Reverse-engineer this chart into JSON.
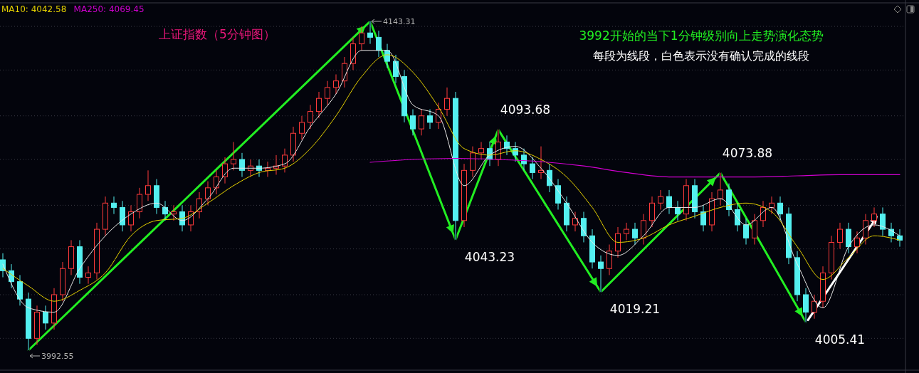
{
  "chart_data": {
    "type": "candlestick",
    "title": "上证指数（5分钟图）",
    "subtitle": "3992开始的当下1分钟级别向上走势演化态势",
    "annotations": [
      "每段为线段，白色表示没有确认完成的线段"
    ],
    "categories": [
      null,
      null,
      null,
      null,
      null,
      null,
      null,
      null,
      null,
      null,
      null,
      null,
      null,
      null,
      null,
      null,
      null,
      null,
      null,
      null,
      null,
      null,
      null,
      null,
      null,
      null,
      null,
      null,
      null,
      null,
      null,
      null,
      null,
      null,
      null,
      null,
      null,
      null,
      null,
      null,
      null,
      null,
      null,
      null,
      null,
      null,
      null,
      null,
      null,
      null,
      null,
      null,
      null,
      null,
      null,
      null,
      null,
      null,
      null,
      null,
      null,
      null,
      null,
      null,
      null,
      null,
      null,
      null,
      null,
      null,
      null,
      null,
      null,
      null,
      null,
      null,
      null,
      null,
      null,
      null,
      null,
      null,
      null,
      null,
      null,
      null,
      null,
      null,
      null,
      null,
      null,
      null,
      null,
      null,
      null,
      null,
      null,
      null,
      null,
      null,
      null,
      null,
      null,
      null,
      null,
      null
    ],
    "grid": "y",
    "yticks": [
      {
        "value": 4141,
        "label": null
      },
      {
        "value": 4121,
        "label": null
      },
      {
        "value": 4100,
        "label": null
      },
      {
        "value": 4080,
        "label": null
      },
      {
        "value": 4059,
        "label": null
      },
      {
        "value": 4039,
        "label": null
      },
      {
        "value": 4018,
        "label": null
      },
      {
        "value": 3998,
        "label": null
      }
    ],
    "ohlc": [
      [
        4034,
        4037,
        4026,
        4029
      ],
      [
        4029,
        4032,
        4021,
        4024
      ],
      [
        4024,
        4027,
        4013,
        4016
      ],
      [
        4016,
        4019,
        3992.55,
        3998
      ],
      [
        3998,
        4013,
        3995,
        4010
      ],
      [
        4010,
        4013,
        4002,
        4005
      ],
      [
        4005,
        4021,
        4002,
        4018
      ],
      [
        4018,
        4033,
        4015,
        4030
      ],
      [
        4030,
        4043,
        4027,
        4040
      ],
      [
        4040,
        4043,
        4023,
        4026
      ],
      [
        4026,
        4031,
        4023,
        4028
      ],
      [
        4028,
        4051,
        4025,
        4048
      ],
      [
        4048,
        4063,
        4045,
        4060
      ],
      [
        4060,
        4063,
        4055,
        4058
      ],
      [
        4058,
        4061,
        4047,
        4050
      ],
      [
        4050,
        4059,
        4047,
        4056
      ],
      [
        4056,
        4067,
        4053,
        4064
      ],
      [
        4064,
        4075,
        4061,
        4068
      ],
      [
        4068,
        4071,
        4055,
        4058
      ],
      [
        4058,
        4061,
        4052,
        4055
      ],
      [
        4055,
        4059,
        4052,
        4056
      ],
      [
        4056,
        4059,
        4047,
        4050
      ],
      [
        4050,
        4059,
        4047,
        4056
      ],
      [
        4056,
        4065,
        4053,
        4062
      ],
      [
        4062,
        4070,
        4059,
        4067
      ],
      [
        4067,
        4075,
        4064,
        4072
      ],
      [
        4072,
        4081,
        4069,
        4078
      ],
      [
        4078,
        4088,
        4075,
        4080
      ],
      [
        4080,
        4083,
        4072,
        4075
      ],
      [
        4075,
        4080,
        4072,
        4077
      ],
      [
        4077,
        4080,
        4072,
        4075
      ],
      [
        4075,
        4079,
        4072,
        4076
      ],
      [
        4076,
        4082,
        4073,
        4077
      ],
      [
        4077,
        4085,
        4074,
        4082
      ],
      [
        4082,
        4095,
        4079,
        4092
      ],
      [
        4092,
        4100,
        4089,
        4097
      ],
      [
        4097,
        4105,
        4094,
        4102
      ],
      [
        4102,
        4111,
        4099,
        4108
      ],
      [
        4108,
        4116,
        4105,
        4113
      ],
      [
        4113,
        4119,
        4110,
        4116
      ],
      [
        4116,
        4127,
        4113,
        4124
      ],
      [
        4124,
        4136,
        4121,
        4133
      ],
      [
        4133,
        4141,
        4130,
        4138
      ],
      [
        4138,
        4143.31,
        4133,
        4136
      ],
      [
        4136,
        4139,
        4127,
        4130
      ],
      [
        4130,
        4133,
        4122,
        4125
      ],
      [
        4125,
        4128,
        4115,
        4118
      ],
      [
        4118,
        4121,
        4097,
        4100
      ],
      [
        4100,
        4103,
        4091,
        4094
      ],
      [
        4094,
        4103,
        4091,
        4100
      ],
      [
        4100,
        4103,
        4094,
        4097
      ],
      [
        4097,
        4106,
        4094,
        4103
      ],
      [
        4103,
        4113,
        4100,
        4108
      ],
      [
        4108,
        4111,
        4043.23,
        4052
      ],
      [
        4052,
        4078,
        4049,
        4075
      ],
      [
        4075,
        4086,
        4072,
        4083
      ],
      [
        4083,
        4088,
        4080,
        4085
      ],
      [
        4085,
        4088,
        4077,
        4080
      ],
      [
        4080,
        4093.68,
        4077,
        4088
      ],
      [
        4088,
        4091,
        4082,
        4085
      ],
      [
        4085,
        4088,
        4079,
        4082
      ],
      [
        4082,
        4085,
        4075,
        4078
      ],
      [
        4078,
        4081,
        4071,
        4074
      ],
      [
        4074,
        4086,
        4071,
        4075
      ],
      [
        4075,
        4078,
        4065,
        4068
      ],
      [
        4068,
        4071,
        4057,
        4060
      ],
      [
        4060,
        4063,
        4047,
        4050
      ],
      [
        4050,
        4056,
        4047,
        4053
      ],
      [
        4053,
        4056,
        4042,
        4045
      ],
      [
        4045,
        4048,
        4030,
        4033
      ],
      [
        4033,
        4036,
        4019.21,
        4030
      ],
      [
        4030,
        4041,
        4027,
        4038
      ],
      [
        4038,
        4049,
        4035,
        4046
      ],
      [
        4046,
        4051,
        4043,
        4048
      ],
      [
        4048,
        4051,
        4041,
        4044
      ],
      [
        4044,
        4055,
        4041,
        4052
      ],
      [
        4052,
        4063,
        4049,
        4060
      ],
      [
        4060,
        4066,
        4057,
        4063
      ],
      [
        4063,
        4066,
        4055,
        4058
      ],
      [
        4058,
        4061,
        4052,
        4055
      ],
      [
        4055,
        4071,
        4052,
        4068
      ],
      [
        4068,
        4071,
        4053,
        4056
      ],
      [
        4056,
        4059,
        4047,
        4050
      ],
      [
        4050,
        4065,
        4047,
        4062
      ],
      [
        4062,
        4073.88,
        4059,
        4066
      ],
      [
        4066,
        4069,
        4054,
        4057
      ],
      [
        4057,
        4060,
        4047,
        4050
      ],
      [
        4050,
        4053,
        4041,
        4044
      ],
      [
        4044,
        4055,
        4041,
        4052
      ],
      [
        4052,
        4061,
        4049,
        4058
      ],
      [
        4058,
        4063,
        4055,
        4060
      ],
      [
        4060,
        4063,
        4052,
        4055
      ],
      [
        4055,
        4058,
        4032,
        4035
      ],
      [
        4035,
        4038,
        4015,
        4018
      ],
      [
        4018,
        4021,
        4005.41,
        4010
      ],
      [
        4010,
        4018,
        4007,
        4015
      ],
      [
        4015,
        4031,
        4012,
        4028
      ],
      [
        4028,
        4045,
        4025,
        4042
      ],
      [
        4042,
        4051,
        4039,
        4048
      ],
      [
        4048,
        4051,
        4037,
        4040
      ],
      [
        4040,
        4047,
        4037,
        4044
      ],
      [
        4044,
        4055,
        4041,
        4052
      ],
      [
        4052,
        4058,
        4049,
        4055
      ],
      [
        4055,
        4058,
        4045,
        4048
      ],
      [
        4048,
        4051,
        4042,
        4045
      ],
      [
        4045,
        4048,
        4040,
        4043
      ]
    ],
    "series": [
      {
        "type": "line",
        "color": "#e8e8e8",
        "values": [
          4032,
          null,
          null,
          4012,
          null,
          null,
          4010,
          null,
          null,
          4030,
          null,
          null,
          4045,
          null,
          null,
          4055,
          null,
          null,
          4060,
          null,
          null,
          4052,
          null,
          null,
          4062,
          null,
          null,
          4076,
          null,
          null,
          4076,
          null,
          null,
          4078,
          null,
          null,
          4095,
          null,
          null,
          4110,
          null,
          null,
          4130,
          null,
          null,
          4130,
          null,
          null,
          4105,
          null,
          null,
          4100,
          null,
          null,
          4068,
          null,
          null,
          4082,
          null,
          null,
          4086,
          null,
          null,
          4076,
          null,
          null,
          4060,
          null,
          null,
          4042,
          null,
          null,
          4036,
          null,
          null,
          4045,
          null,
          null,
          4058,
          null,
          null,
          4058,
          null,
          null,
          4062,
          null,
          null,
          4050,
          null,
          null,
          4058,
          null,
          null,
          4032,
          null,
          null,
          4012,
          null,
          null,
          4040,
          null,
          null,
          4050,
          null,
          null,
          4045
        ]
      },
      {
        "type": "line",
        "name": "MA10: 4042.58",
        "color": "#e6d200",
        "values": [
          4030,
          null,
          null,
          4022,
          null,
          null,
          4015,
          null,
          null,
          4020,
          null,
          null,
          4028,
          null,
          null,
          4045,
          null,
          null,
          4052,
          null,
          null,
          4053,
          null,
          null,
          4060,
          null,
          null,
          4068,
          null,
          null,
          4074,
          null,
          null,
          4076,
          null,
          null,
          4085,
          null,
          null,
          4100,
          null,
          null,
          4118,
          null,
          null,
          4128,
          null,
          null,
          4120,
          null,
          null,
          4104,
          null,
          null,
          4085,
          null,
          null,
          4082,
          null,
          null,
          4084,
          null,
          null,
          4080,
          null,
          null,
          4072,
          null,
          null,
          4058,
          null,
          null,
          4042,
          null,
          null,
          4044,
          null,
          null,
          4050,
          null,
          null,
          4054,
          null,
          null,
          4058,
          null,
          null,
          4060,
          null,
          null,
          4056,
          null,
          null,
          4040,
          null,
          null,
          4025,
          null,
          null,
          4035,
          null,
          null,
          4045,
          null,
          null,
          4043
        ]
      },
      {
        "type": "line",
        "name": "MA250: 4069.45",
        "color": "#d000d0",
        "values": [
          null,
          null,
          null,
          null,
          null,
          null,
          null,
          null,
          null,
          null,
          null,
          null,
          null,
          null,
          null,
          null,
          null,
          null,
          null,
          null,
          null,
          null,
          null,
          null,
          null,
          null,
          null,
          null,
          null,
          null,
          null,
          null,
          null,
          null,
          null,
          null,
          null,
          null,
          null,
          null,
          null,
          null,
          null,
          4078.7,
          null,
          null,
          null,
          null,
          4080,
          null,
          null,
          null,
          null,
          4080.5,
          null,
          null,
          null,
          null,
          4080,
          null,
          null,
          null,
          null,
          4079,
          null,
          null,
          null,
          null,
          4077,
          null,
          null,
          null,
          null,
          4074,
          null,
          null,
          null,
          null,
          4072,
          null,
          null,
          null,
          null,
          4072,
          null,
          null,
          null,
          null,
          4072,
          null,
          null,
          null,
          null,
          4072.5,
          null,
          null,
          null,
          null,
          4073,
          null,
          null,
          null,
          null,
          4073,
          null,
          4073
        ]
      },
      {
        "type": "line",
        "color": "#22ee22",
        "values": [
          null,
          null,
          null,
          3992.55,
          null,
          null,
          null,
          null,
          null,
          null,
          null,
          null,
          null,
          null,
          null,
          null,
          null,
          null,
          null,
          null,
          null,
          null,
          null,
          null,
          null,
          null,
          null,
          null,
          null,
          null,
          null,
          null,
          null,
          null,
          null,
          null,
          null,
          null,
          null,
          null,
          null,
          null,
          null,
          4143.31,
          null,
          null,
          null,
          null,
          null,
          null,
          null,
          null,
          null,
          4043.23,
          null,
          null,
          null,
          null,
          4093.68,
          null,
          null,
          null,
          null,
          null,
          null,
          null,
          null,
          null,
          null,
          null,
          4019.21,
          null,
          null,
          null,
          null,
          null,
          null,
          null,
          null,
          null,
          null,
          null,
          null,
          null,
          4073.88,
          null,
          null,
          null,
          null,
          null,
          null,
          null,
          null,
          null,
          4005.41,
          null,
          null,
          null,
          null,
          null,
          null,
          null,
          null,
          null,
          null,
          null
        ],
        "value_labels": [
          null,
          null,
          null,
          "3992.55",
          null,
          null,
          null,
          null,
          null,
          null,
          null,
          null,
          null,
          null,
          null,
          null,
          null,
          null,
          null,
          null,
          null,
          null,
          null,
          null,
          null,
          null,
          null,
          null,
          null,
          null,
          null,
          null,
          null,
          null,
          null,
          null,
          null,
          null,
          null,
          null,
          null,
          null,
          null,
          "4143.31",
          null,
          null,
          null,
          null,
          null,
          null,
          null,
          null,
          null,
          "4043.23",
          null,
          null,
          null,
          null,
          "4093.68",
          null,
          null,
          null,
          null,
          null,
          null,
          null,
          null,
          null,
          null,
          null,
          "4019.21",
          null,
          null,
          null,
          null,
          null,
          null,
          null,
          null,
          null,
          null,
          null,
          null,
          null,
          "4073.88",
          null,
          null,
          null,
          null,
          null,
          null,
          null,
          null,
          null,
          "4005.41",
          null,
          null,
          null,
          null,
          null,
          null,
          null,
          null,
          null,
          null,
          null
        ]
      }
    ]
  }
}
